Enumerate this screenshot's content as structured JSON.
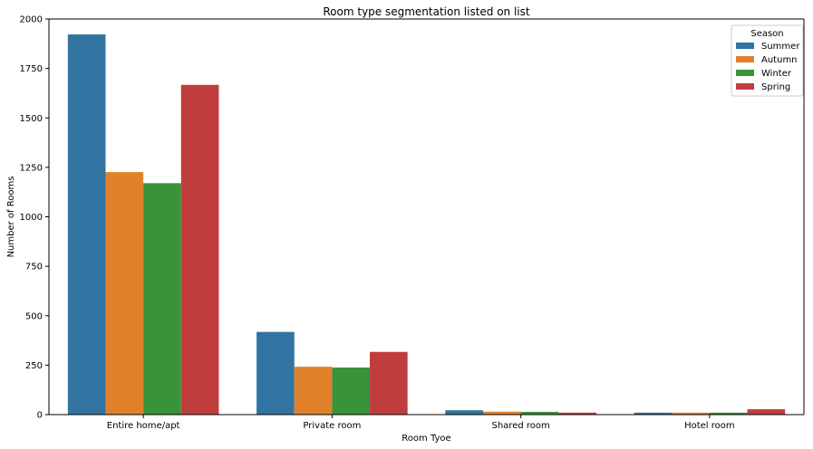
{
  "chart_data": {
    "type": "bar",
    "title": "Room type segmentation listed on list",
    "xlabel": "Room Tyoe",
    "ylabel": "Number of Rooms",
    "categories": [
      "Entire home/apt",
      "Private room",
      "Shared room",
      "Hotel room"
    ],
    "series": [
      {
        "name": "Summer",
        "color": "#3274a1",
        "values": [
          1922,
          418,
          22,
          10
        ]
      },
      {
        "name": "Autumn",
        "color": "#e1812c",
        "values": [
          1226,
          242,
          15,
          10
        ]
      },
      {
        "name": "Winter",
        "color": "#3a923a",
        "values": [
          1170,
          238,
          14,
          10
        ]
      },
      {
        "name": "Spring",
        "color": "#c03d3e",
        "values": [
          1667,
          317,
          10,
          27
        ]
      }
    ],
    "ylim": [
      0,
      2000
    ],
    "yticks": [
      "0",
      "250",
      "500",
      "750",
      "1000",
      "1250",
      "1500",
      "1750",
      "2000"
    ],
    "legend": {
      "title": "Season",
      "placement": "top-right"
    },
    "grid": false
  }
}
